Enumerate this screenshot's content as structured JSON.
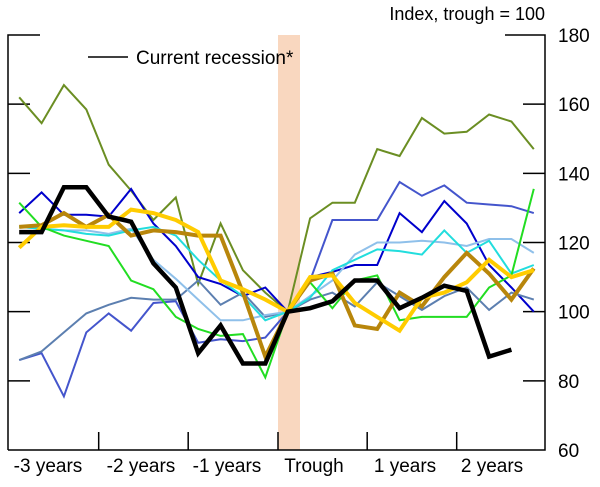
{
  "chart_data": {
    "type": "line",
    "unit_label": "Index, trough = 100",
    "x_tick_labels": [
      "-3 years",
      "-2 years",
      "-1 years",
      "Trough",
      "1 years",
      "2 years"
    ],
    "x_quarters": [
      -12,
      -11,
      -10,
      -9,
      -8,
      -7,
      -6,
      -5,
      -4,
      -3,
      -2,
      -1,
      0,
      1,
      2,
      3,
      4,
      5,
      6,
      7,
      8,
      9,
      10,
      11
    ],
    "y_ticks": [
      60,
      80,
      100,
      120,
      140,
      160,
      180
    ],
    "ylim": [
      60,
      180
    ],
    "xlim_quarters": [
      -12.5,
      11.5
    ],
    "recession_shading_color": "#f9d7bf",
    "legend": {
      "label": "Current recession*",
      "placement": "top-left"
    },
    "series": [
      {
        "name": "Current recession*",
        "color": "#000000",
        "width": 4.5,
        "values": [
          123,
          123,
          136,
          136,
          127.5,
          126,
          114,
          107,
          88,
          96,
          85,
          85,
          100,
          101,
          103,
          109,
          109,
          101,
          104,
          107.5,
          106,
          87,
          89,
          null
        ]
      },
      {
        "color": "#6b8e23",
        "width": 2,
        "values": [
          162,
          154.5,
          165.5,
          158.5,
          142.5,
          135,
          126.5,
          133,
          108,
          125.5,
          112,
          105.5,
          100,
          127,
          131.5,
          131.5,
          147,
          145,
          156,
          151.5,
          152,
          157,
          155,
          147
        ]
      },
      {
        "color": "#0000cc",
        "width": 2,
        "values": [
          128.5,
          134.5,
          128,
          128,
          127.5,
          135.5,
          125.5,
          119,
          110,
          108,
          104.5,
          107,
          100,
          110,
          111.5,
          113.5,
          113.5,
          128.5,
          123,
          132,
          125.5,
          113.5,
          107,
          100
        ]
      },
      {
        "color": "#4455cc",
        "width": 2,
        "values": [
          86,
          88,
          75.5,
          94,
          99.5,
          94.5,
          102.5,
          103,
          91,
          92,
          91.5,
          92.5,
          100,
          109,
          126.5,
          126.5,
          126.5,
          137.5,
          133.5,
          136.5,
          131.5,
          131,
          130.5,
          128.5
        ]
      },
      {
        "color": "#5c7fb0",
        "width": 2,
        "values": [
          86,
          88.5,
          94,
          99.5,
          102,
          104,
          103.5,
          103.5,
          109,
          102,
          105.5,
          98.5,
          100,
          103.5,
          105.5,
          101.5,
          108.5,
          104.5,
          100.5,
          104.5,
          107,
          100.5,
          105.5,
          103.5
        ]
      },
      {
        "color": "#8fc0ea",
        "width": 2,
        "values": [
          124.5,
          124,
          123.5,
          123.5,
          122.5,
          124,
          115,
          109.5,
          103.5,
          97.5,
          97.5,
          99,
          100,
          104.5,
          109,
          116.5,
          120,
          120,
          120.5,
          120,
          119,
          121,
          121,
          117
        ]
      },
      {
        "color": "#22dddd",
        "width": 2,
        "values": [
          124.5,
          124,
          123.5,
          122.5,
          122,
          123.5,
          124.5,
          122,
          115,
          109,
          104.5,
          97.5,
          100,
          104,
          112,
          115,
          118,
          117.5,
          116.5,
          123.5,
          117,
          120.5,
          111,
          113.5
        ]
      },
      {
        "color": "#22dd22",
        "width": 2,
        "values": [
          131.5,
          124.5,
          122,
          120.5,
          119,
          109,
          106.5,
          98.5,
          95,
          93,
          93.5,
          81,
          100,
          108.5,
          101,
          109,
          110.5,
          97.5,
          98.5,
          98.5,
          98.5,
          107,
          110.5,
          135.5
        ]
      },
      {
        "color": "#b8860b",
        "width": 4,
        "values": [
          124.5,
          125,
          128.5,
          124.5,
          128,
          122,
          123.5,
          123,
          122,
          122,
          105.5,
          87,
          100,
          109,
          111,
          96,
          95,
          105.5,
          101.5,
          110,
          117,
          111,
          103.5,
          112.5
        ]
      },
      {
        "color": "#ffcc00",
        "width": 4,
        "values": [
          118.5,
          124.5,
          125,
          124.5,
          124.5,
          129.5,
          128.5,
          126.5,
          123,
          109,
          106.5,
          103.5,
          100,
          110,
          110.5,
          102.5,
          98.5,
          94.5,
          104,
          105.5,
          108.5,
          115,
          110,
          112
        ]
      }
    ]
  }
}
